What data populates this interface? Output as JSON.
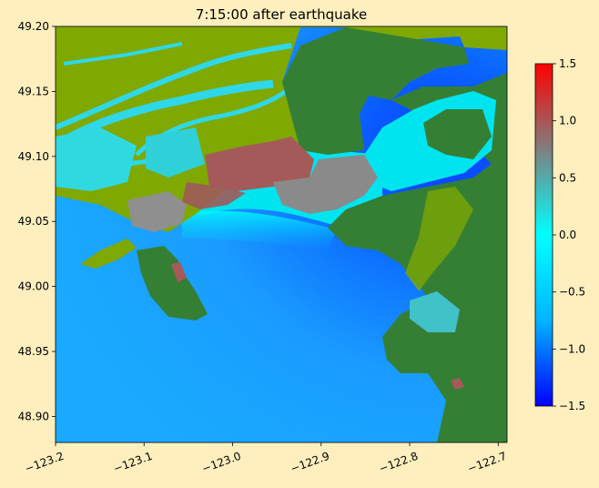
{
  "title": "7:15:00 after earthquake",
  "x_axis": {
    "min": -123.2,
    "max": -122.69,
    "ticks": [
      {
        "value": -123.2,
        "label": "−123.2"
      },
      {
        "value": -123.1,
        "label": "−123.1"
      },
      {
        "value": -123.0,
        "label": "−123.0"
      },
      {
        "value": -122.9,
        "label": "−122.9"
      },
      {
        "value": -122.8,
        "label": "−122.8"
      },
      {
        "value": -122.7,
        "label": "−122.7"
      }
    ]
  },
  "y_axis": {
    "min": 48.88,
    "max": 49.2,
    "ticks": [
      {
        "value": 49.2,
        "label": "49.20"
      },
      {
        "value": 49.15,
        "label": "49.15"
      },
      {
        "value": 49.1,
        "label": "49.10"
      },
      {
        "value": 49.05,
        "label": "49.05"
      },
      {
        "value": 49.0,
        "label": "49.00"
      },
      {
        "value": 48.95,
        "label": "48.95"
      },
      {
        "value": 48.9,
        "label": "48.90"
      }
    ]
  },
  "colorbar": {
    "min": -1.5,
    "max": 1.5,
    "colors": [
      "#0000ff",
      "#00b4ff",
      "#00ffff",
      "#7f7f7f",
      "#ff0000"
    ],
    "ticks": [
      {
        "value": 1.5,
        "label": "1.5"
      },
      {
        "value": 1.0,
        "label": "1.0"
      },
      {
        "value": 0.5,
        "label": "0.5"
      },
      {
        "value": 0.0,
        "label": "0.0"
      },
      {
        "value": -0.5,
        "label": "−0.5"
      },
      {
        "value": -1.0,
        "label": "−1.0"
      },
      {
        "value": -1.5,
        "label": "−1.5"
      }
    ]
  },
  "colors": {
    "background": "#ffefbf",
    "land_low": "#7fa800",
    "land_high": "#357f35",
    "water_deep": "#0a55ff",
    "water_mid": "#1aaaff",
    "water_shallow": "#00e4f0",
    "flooded_high": "#a55a5a",
    "flooded_gray": "#8a8a8a"
  }
}
